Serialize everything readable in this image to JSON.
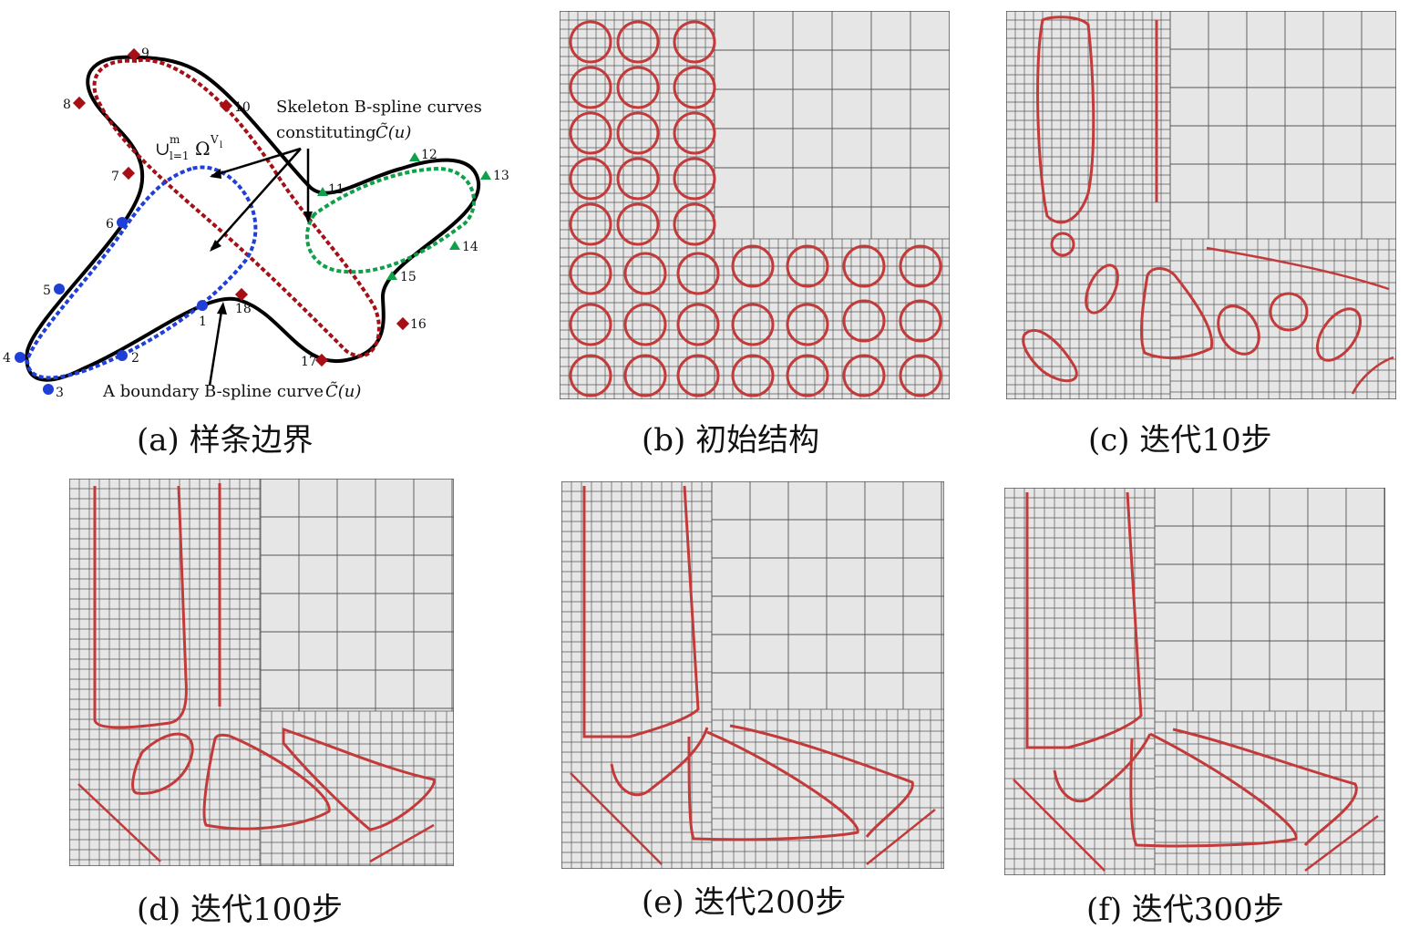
{
  "figure": {
    "panel_a": {
      "caption": "(a) 样条边界",
      "label_skeleton_line1": "Skeleton B-spline curves",
      "label_skeleton_line2": "constituting",
      "label_skeleton_symbol": "C̃(u)",
      "label_union": "∪",
      "label_union_sup": "m",
      "label_union_sub": "l=1",
      "label_omega": "Ω",
      "label_omega_sup": "V",
      "label_omega_sub": "l",
      "label_boundary": "A boundary B-spline curve",
      "label_boundary_symbol": "C̃(u)",
      "points": [
        "1",
        "2",
        "3",
        "4",
        "5",
        "6",
        "7",
        "8",
        "9",
        "10",
        "11",
        "12",
        "13",
        "14",
        "15",
        "16",
        "17",
        "18"
      ],
      "colors": {
        "blue": "#1f3fd6",
        "red": "#a50f15",
        "green": "#11a04a",
        "black": "#000000"
      }
    },
    "panel_b": {
      "caption": "(b) 初始结构"
    },
    "panel_c": {
      "caption": "(c) 迭代10步"
    },
    "panel_d": {
      "caption": "(d) 迭代100步"
    },
    "panel_e": {
      "caption": "(e) 迭代200步"
    },
    "panel_f": {
      "caption": "(f) 迭代300步"
    }
  },
  "colors": {
    "grid": "#555555",
    "fill": "#e6e6e6",
    "structure": "#c23a3a"
  }
}
